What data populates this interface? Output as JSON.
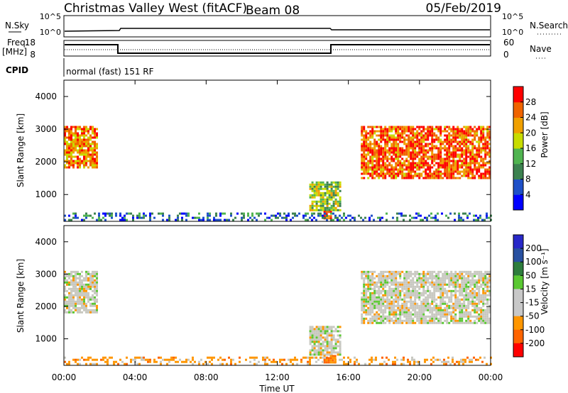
{
  "header": {
    "station": "Christmas Valley West (fitACF)",
    "beam": "Beam 08",
    "date": "05/Feb/2019"
  },
  "panels": {
    "nsky": {
      "label": "N.Sky",
      "tick_top": "10^5",
      "tick_bottom": "10^0",
      "right_label": "N.Search",
      "right_tick_top": "10^5",
      "right_tick_bottom": "10^0"
    },
    "freq": {
      "label_top": "Freq.",
      "label_bottom": "[MHz]",
      "tick_top": "18",
      "tick_bottom": "8",
      "right_label": "Nave",
      "right_tick_top": "60",
      "right_tick_bottom": "0"
    },
    "cpid": {
      "label": "CPID",
      "text": "normal (fast) 151 RF"
    }
  },
  "colors": {
    "power": [
      "#0000ff",
      "#1e50c8",
      "#3c8250",
      "#50b450",
      "#c8dc00",
      "#f0a000",
      "#f06400",
      "#ff0000"
    ],
    "velocity": [
      "#2828c8",
      "#2850a0",
      "#2d7d3c",
      "#5ac832",
      "#c8c8c8",
      "#c8c8c8",
      "#ff9600",
      "#ff6400",
      "#ff0000"
    ],
    "velocity_bg": "#c8c8c0"
  },
  "chart_data": [
    {
      "type": "heatmap",
      "name": "power",
      "xlabel": "",
      "ylabel": "Slant Range [km]",
      "ylim": [
        180,
        4500
      ],
      "xlim": [
        0,
        24
      ],
      "yticks": [
        "1000",
        "2000",
        "3000",
        "4000"
      ],
      "colorbar": {
        "label": "Power [dB]",
        "ticks": [
          "4",
          "8",
          "12",
          "16",
          "20",
          "24",
          "28"
        ],
        "range": [
          0,
          32
        ]
      },
      "regions": [
        {
          "x0": 0.0,
          "x1": 1.8,
          "y0": 1800,
          "y1": 3100,
          "value": 24
        },
        {
          "x0": 13.8,
          "x1": 15.5,
          "y0": 500,
          "y1": 1400,
          "value": 16
        },
        {
          "x0": 14.6,
          "x1": 15.0,
          "y0": 250,
          "y1": 500,
          "value": 28
        },
        {
          "x0": 16.7,
          "x1": 24.0,
          "y0": 1500,
          "y1": 3100,
          "value": 26
        },
        {
          "x0": 0.0,
          "x1": 24.0,
          "y0": 200,
          "y1": 450,
          "value": 8
        }
      ]
    },
    {
      "type": "heatmap",
      "name": "velocity",
      "xlabel": "Time UT",
      "ylabel": "Slant Range [km]",
      "ylim": [
        180,
        4500
      ],
      "xlim": [
        0,
        24
      ],
      "yticks": [
        "1000",
        "2000",
        "3000",
        "4000"
      ],
      "xticks": [
        "00:00",
        "04:00",
        "08:00",
        "12:00",
        "16:00",
        "20:00",
        "00:00"
      ],
      "colorbar": {
        "label": "Velocity [m s⁻¹]",
        "ticks": [
          "200",
          "100",
          "50",
          "15",
          "-15",
          "-50",
          "-100",
          "-200"
        ]
      },
      "regions": [
        {
          "x0": 0.0,
          "x1": 1.8,
          "y0": 1800,
          "y1": 3100,
          "value": 0
        },
        {
          "x0": 13.8,
          "x1": 15.5,
          "y0": 500,
          "y1": 1400,
          "value": 0
        },
        {
          "x0": 14.6,
          "x1": 15.2,
          "y0": 250,
          "y1": 500,
          "value": -60
        },
        {
          "x0": 16.7,
          "x1": 24.0,
          "y0": 1500,
          "y1": 3100,
          "value": 0
        },
        {
          "x0": 0.0,
          "x1": 24.0,
          "y0": 200,
          "y1": 450,
          "value": -30
        }
      ]
    }
  ]
}
